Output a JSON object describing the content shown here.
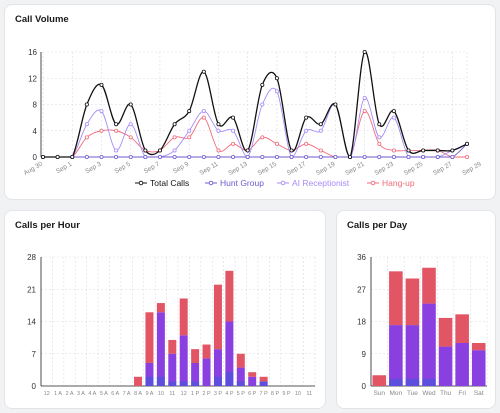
{
  "colors": {
    "total": "#111111",
    "hunt": "#6d5bd0",
    "ai": "#a78bfa",
    "hangup": "#f06b7a",
    "bar_purple": "#8a3fe0",
    "bar_blue": "#3b5bdb",
    "bar_red": "#e25564",
    "grid": "#d9dbe0"
  },
  "call_volume": {
    "title": "Call Volume",
    "chart_data": {
      "type": "line",
      "x": [
        "Aug 30",
        "Aug 31",
        "Sep 1",
        "Sep 2",
        "Sep 3",
        "Sep 4",
        "Sep 5",
        "Sep 6",
        "Sep 7",
        "Sep 8",
        "Sep 9",
        "Sep 10",
        "Sep 11",
        "Sep 12",
        "Sep 13",
        "Sep 14",
        "Sep 15",
        "Sep 16",
        "Sep 17",
        "Sep 18",
        "Sep 19",
        "Sep 20",
        "Sep 21",
        "Sep 22",
        "Sep 23",
        "Sep 24",
        "Sep 25",
        "Sep 26",
        "Sep 27",
        "Sep 28"
      ],
      "xticks": [
        "Aug 30",
        "Sep 1",
        "Sep 3",
        "Sep 5",
        "Sep 7",
        "Sep 9",
        "Sep 11",
        "Sep 13",
        "Sep 15",
        "Sep 17",
        "Sep 19",
        "Sep 21",
        "Sep 23",
        "Sep 25",
        "Sep 27",
        "Sep 29"
      ],
      "yticks": [
        0,
        4,
        8,
        12,
        16
      ],
      "ylim": [
        0,
        16
      ],
      "series": [
        {
          "name": "Total Calls",
          "values": [
            0,
            0,
            0,
            8,
            11,
            5,
            8,
            1,
            1,
            5,
            7,
            13,
            5,
            6,
            1,
            11,
            12,
            1,
            6,
            5,
            8,
            0,
            16,
            5,
            7,
            1,
            1,
            1,
            1,
            2
          ]
        },
        {
          "name": "Hunt Group",
          "values": [
            0,
            0,
            0,
            0,
            0,
            0,
            0,
            0,
            0,
            0,
            0,
            0,
            0,
            0,
            0,
            0,
            0,
            0,
            0,
            0,
            0,
            0,
            0,
            0,
            0,
            0,
            0,
            0,
            0,
            2
          ]
        },
        {
          "name": "AI Receptionist",
          "values": [
            0,
            0,
            0,
            5,
            7,
            1,
            5,
            0,
            0,
            1,
            4,
            7,
            4,
            4,
            0,
            8,
            10,
            0,
            4,
            4,
            8,
            0,
            9,
            3,
            6,
            0,
            0,
            0,
            1,
            2
          ]
        },
        {
          "name": "Hang-up",
          "values": [
            0,
            0,
            0,
            3,
            4,
            4,
            3,
            1,
            1,
            3,
            3,
            6,
            1,
            2,
            1,
            3,
            2,
            1,
            2,
            1,
            0,
            0,
            7,
            2,
            1,
            1,
            1,
            1,
            0,
            0
          ]
        }
      ],
      "legend_position": "bottom"
    }
  },
  "calls_per_hour": {
    "title": "Calls per Hour",
    "chart_data": {
      "type": "bar",
      "categories": [
        "12",
        "1 A",
        "2 A",
        "3 A",
        "4 A",
        "5 A",
        "6 A",
        "7 A",
        "8 A",
        "9 A",
        "10",
        "11",
        "12",
        "1 P",
        "2 P",
        "3 P",
        "4 P",
        "5 P",
        "6 P",
        "7 P",
        "8 P",
        "9 P",
        "10",
        "11"
      ],
      "yticks": [
        0,
        7,
        14,
        21,
        28
      ],
      "ylim": [
        0,
        28
      ],
      "series": [
        {
          "name": "purple",
          "values": [
            0,
            0,
            0,
            0,
            0,
            0,
            0,
            0,
            0,
            5,
            16,
            7,
            11,
            5,
            6,
            8,
            14,
            4,
            2,
            1,
            0,
            0,
            0,
            0
          ]
        },
        {
          "name": "blue",
          "values": [
            0,
            0,
            0,
            0,
            0,
            0,
            0,
            0,
            0,
            2,
            2,
            1,
            1,
            1,
            0,
            2,
            3,
            1,
            0,
            1,
            0,
            0,
            0,
            0
          ]
        },
        {
          "name": "red",
          "values": [
            0,
            0,
            0,
            0,
            0,
            0,
            0,
            0,
            2,
            11,
            2,
            3,
            8,
            3,
            3,
            14,
            11,
            3,
            1,
            1,
            0,
            0,
            0,
            0
          ]
        }
      ]
    }
  },
  "calls_per_day": {
    "title": "Calls per Day",
    "chart_data": {
      "type": "bar",
      "categories": [
        "Sun",
        "Mon",
        "Tue",
        "Wed",
        "Thu",
        "Fri",
        "Sat"
      ],
      "yticks": [
        0,
        9,
        18,
        27,
        36
      ],
      "ylim": [
        0,
        36
      ],
      "series": [
        {
          "name": "purple",
          "values": [
            0,
            17,
            17,
            23,
            11,
            12,
            10
          ]
        },
        {
          "name": "blue",
          "values": [
            1,
            2,
            2,
            2,
            0,
            0,
            0
          ]
        },
        {
          "name": "red",
          "values": [
            3,
            15,
            13,
            10,
            8,
            8,
            2
          ]
        }
      ]
    }
  }
}
